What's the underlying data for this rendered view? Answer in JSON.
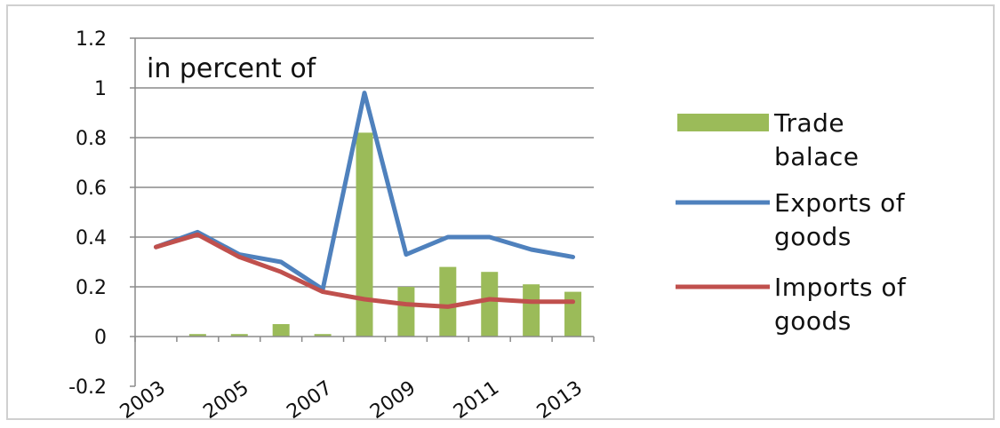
{
  "chart_data": {
    "type": "bar",
    "annotation": "in percent of",
    "ylim": [
      -0.2,
      1.2
    ],
    "yticks": [
      "1.2",
      "1",
      "0.8",
      "0.6",
      "0.4",
      "0.2",
      "0",
      "-0.2"
    ],
    "ytick_values": [
      1.2,
      1,
      0.8,
      0.6,
      0.4,
      0.2,
      0,
      -0.2
    ],
    "x": [
      2003,
      2004,
      2005,
      2006,
      2007,
      2008,
      2009,
      2010,
      2011,
      2012,
      2013
    ],
    "xtick_labels": [
      "2003",
      "2005",
      "2007",
      "2009",
      "2011",
      "2013"
    ],
    "grid": true,
    "legend_position": "right",
    "series": [
      {
        "name": "Trade balace",
        "legend_lines": [
          "Trade",
          "balace"
        ],
        "kind": "bar",
        "color": "#9bbb59",
        "values": [
          0.0,
          0.01,
          0.01,
          0.05,
          0.01,
          0.82,
          0.2,
          0.28,
          0.26,
          0.21,
          0.18
        ]
      },
      {
        "name": "Exports of goods",
        "legend_lines": [
          "Exports of",
          "goods"
        ],
        "kind": "line",
        "color": "#4f81bd",
        "values": [
          0.36,
          0.42,
          0.33,
          0.3,
          0.19,
          0.98,
          0.33,
          0.4,
          0.4,
          0.35,
          0.32
        ]
      },
      {
        "name": "Imports of goods",
        "legend_lines": [
          "Imports of",
          "goods"
        ],
        "kind": "line",
        "color": "#c0504d",
        "values": [
          0.36,
          0.41,
          0.32,
          0.26,
          0.18,
          0.15,
          0.13,
          0.12,
          0.15,
          0.14,
          0.14
        ]
      }
    ]
  }
}
